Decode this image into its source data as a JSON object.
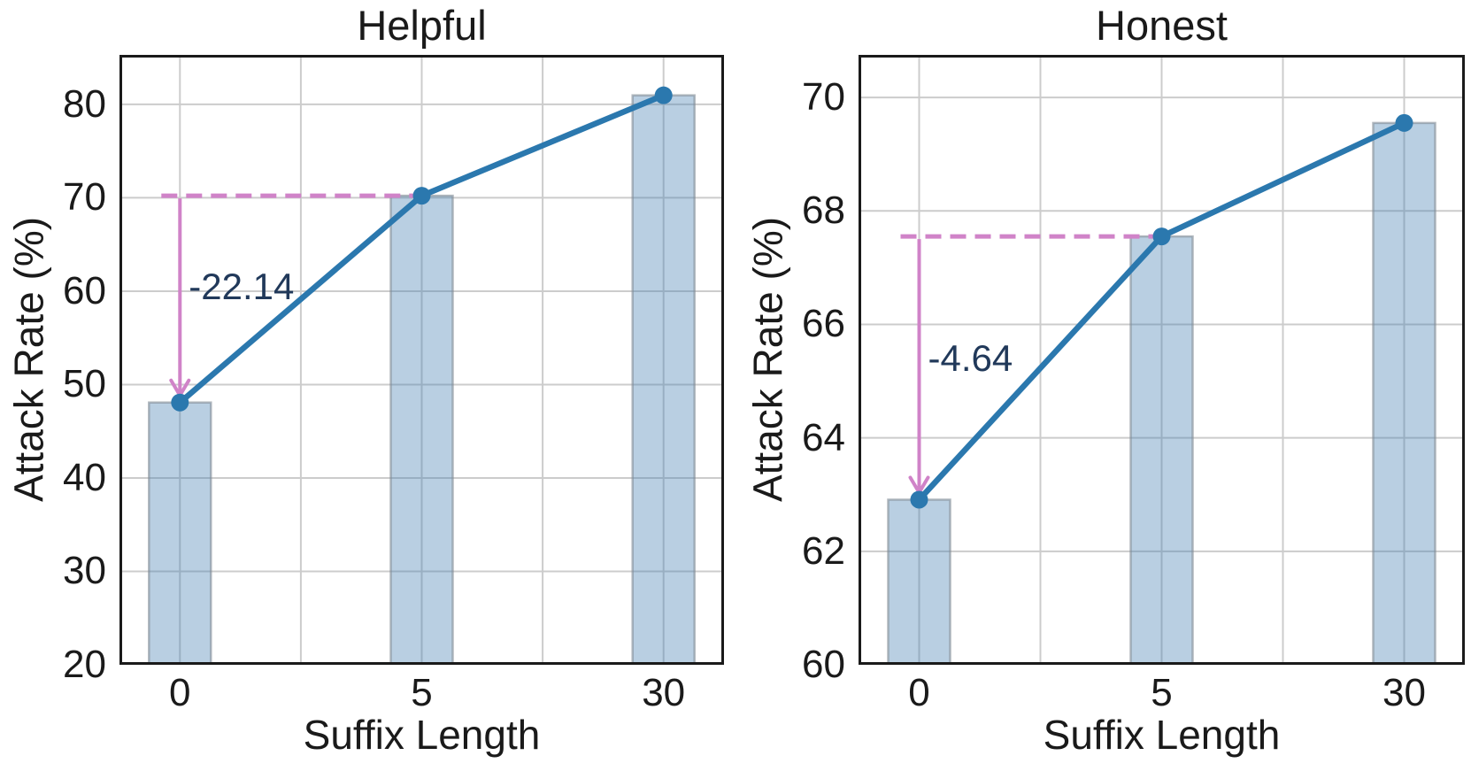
{
  "colors": {
    "background": "#ffffff",
    "text": "#1a1a1a",
    "spine": "#1a1a1a",
    "grid": "#cccccc",
    "line_blue": "#2b78ae",
    "bar_fill_base": "#4682b4",
    "bar_edge": "#808b94",
    "annotation_pink": "#d083c8",
    "annotation_text": "#21395a"
  },
  "chart_data": [
    {
      "name": "helpful",
      "type": "bar",
      "overlay": "line",
      "title": "Helpful",
      "xlabel": "Suffix Length",
      "ylabel": "Attack Rate (%)",
      "categories": [
        "0",
        "5",
        "30"
      ],
      "values": [
        48.08,
        70.22,
        80.97
      ],
      "ylim": [
        20,
        85.3
      ],
      "yticks": [
        20,
        30,
        40,
        50,
        60,
        70,
        80
      ],
      "grid": "on",
      "legend": "none",
      "annotation": {
        "label": "-22.14",
        "from_value": 70.22,
        "to_value": 48.08,
        "label_value": 60.2,
        "style": "dashed-reference-with-down-arrow"
      }
    },
    {
      "name": "honest",
      "type": "bar",
      "overlay": "line",
      "title": "Honest",
      "xlabel": "Suffix Length",
      "ylabel": "Attack Rate (%)",
      "categories": [
        "0",
        "5",
        "30"
      ],
      "values": [
        62.91,
        67.55,
        69.55
      ],
      "ylim": [
        60,
        70.75
      ],
      "yticks": [
        60,
        62,
        64,
        66,
        68,
        70
      ],
      "grid": "on",
      "legend": "none",
      "annotation": {
        "label": "-4.64",
        "from_value": 67.55,
        "to_value": 62.91,
        "label_value": 65.35,
        "style": "dashed-reference-with-down-arrow"
      }
    }
  ]
}
